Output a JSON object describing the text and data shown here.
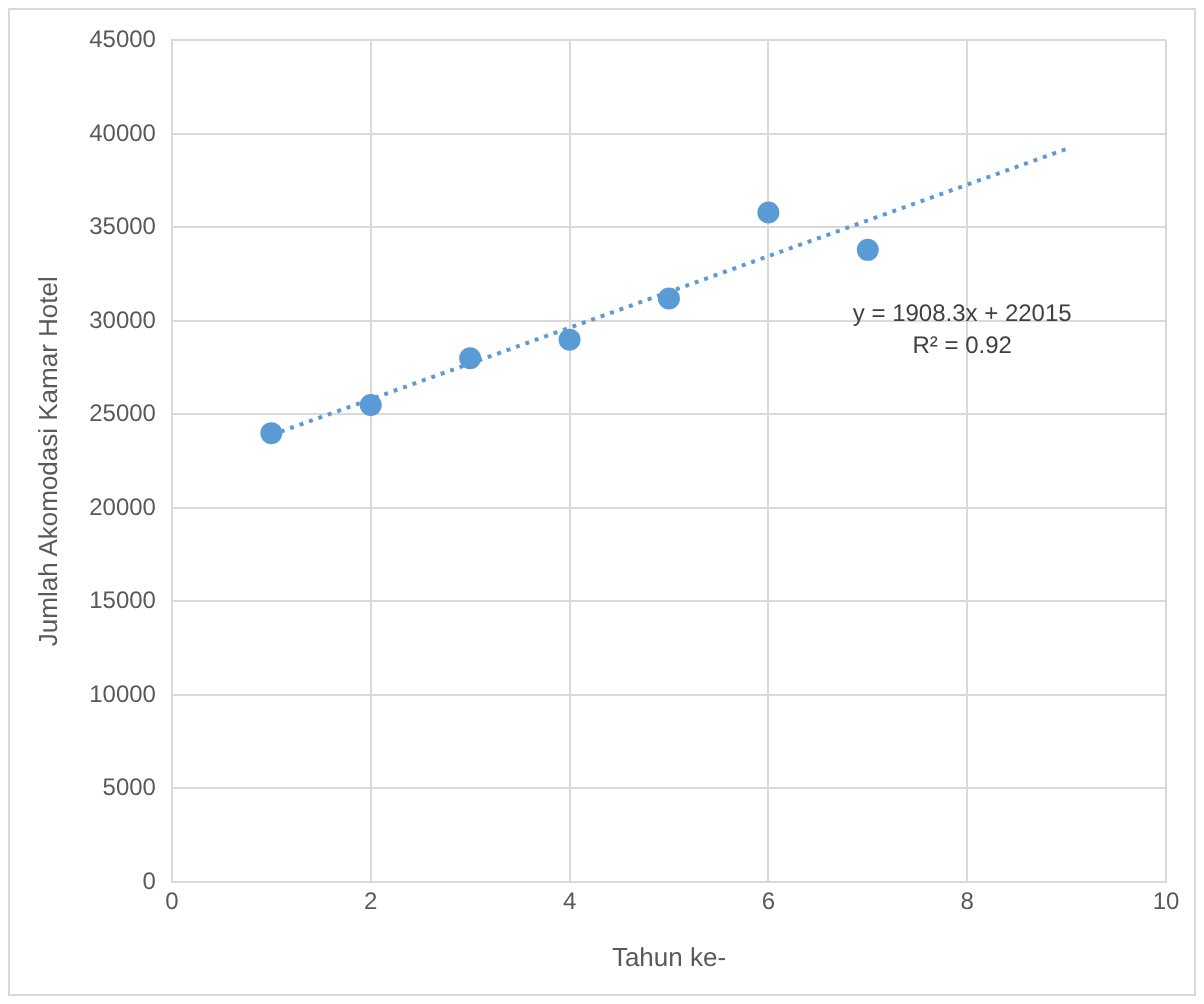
{
  "chart_data": {
    "type": "scatter",
    "xlabel": "Tahun ke-",
    "ylabel": "Jumlah Akomodasi Kamar Hotel",
    "x": [
      1,
      2,
      3,
      4,
      5,
      6,
      7
    ],
    "series": [
      {
        "color": "#5b9bd5",
        "values": [
          24000,
          25500,
          28000,
          29000,
          31200,
          35800,
          33800
        ]
      },
      {
        "type": "line",
        "color": "#5b9bd5",
        "x": [
          1,
          9
        ],
        "values": [
          23900,
          39200
        ],
        "line_style": "dotted",
        "marker": "none"
      }
    ],
    "xlim": [
      0,
      10
    ],
    "xticks": [
      0,
      2,
      4,
      6,
      8,
      10
    ],
    "ylim": [
      0,
      45000
    ],
    "yticks": [
      0,
      5000,
      10000,
      15000,
      20000,
      25000,
      30000,
      35000,
      40000,
      45000
    ],
    "grid": true,
    "legend": false,
    "marker": "circle",
    "annotations": [
      "y = 1908.3x + 22015",
      "R² = 0.92"
    ]
  }
}
